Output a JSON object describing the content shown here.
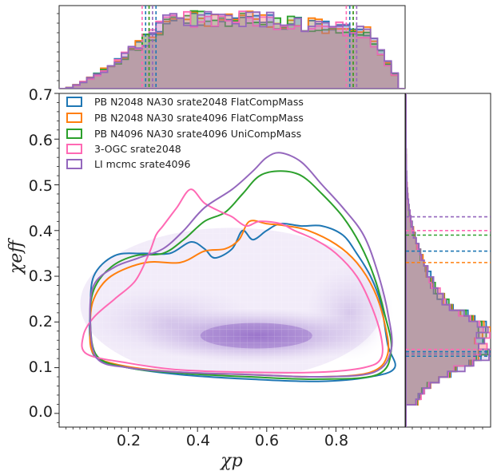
{
  "chart_data": {
    "type": "scatter",
    "subtype": "corner-plot: 2D density contours with marginal step histograms",
    "title": "",
    "xlabel": "χp",
    "ylabel": "χeff",
    "xlim": [
      0.0,
      1.0
    ],
    "ylim": [
      -0.03,
      0.7
    ],
    "xticks": [
      "0.2",
      "0.4",
      "0.6",
      "0.8"
    ],
    "yticks": [
      "0.0",
      "0.1",
      "0.2",
      "0.3",
      "0.4",
      "0.5",
      "0.6",
      "0.7"
    ],
    "xtick_values": [
      0.2,
      0.4,
      0.6,
      0.8
    ],
    "ytick_values": [
      0.0,
      0.1,
      0.2,
      0.3,
      0.4,
      0.5,
      0.6,
      0.7
    ],
    "grid": false,
    "legend_position": "top-left",
    "density_peak": [
      0.57,
      0.17
    ],
    "series": [
      {
        "name": "PB N2048 NA30 srate2048 FlatCompMass",
        "color": "#1f77b4",
        "contour": [
          [
            0.1,
            0.3
          ],
          [
            0.16,
            0.345
          ],
          [
            0.24,
            0.35
          ],
          [
            0.32,
            0.35
          ],
          [
            0.38,
            0.375
          ],
          [
            0.42,
            0.36
          ],
          [
            0.45,
            0.34
          ],
          [
            0.5,
            0.36
          ],
          [
            0.53,
            0.4
          ],
          [
            0.56,
            0.38
          ],
          [
            0.6,
            0.4
          ],
          [
            0.64,
            0.415
          ],
          [
            0.7,
            0.41
          ],
          [
            0.76,
            0.41
          ],
          [
            0.82,
            0.39
          ],
          [
            0.86,
            0.35
          ],
          [
            0.9,
            0.3
          ],
          [
            0.93,
            0.24
          ],
          [
            0.95,
            0.15
          ],
          [
            0.97,
            0.1
          ],
          [
            0.9,
            0.08
          ],
          [
            0.75,
            0.07
          ],
          [
            0.55,
            0.075
          ],
          [
            0.35,
            0.085
          ],
          [
            0.2,
            0.1
          ],
          [
            0.11,
            0.12
          ],
          [
            0.09,
            0.16
          ],
          [
            0.09,
            0.22
          ]
        ],
        "x_quantiles": [
          0.25,
          0.28,
          0.84
        ],
        "y_quantiles": [
          0.125,
          0.135,
          0.355
        ]
      },
      {
        "name": "PB N2048 NA30 srate4096 FlatCompMass",
        "color": "#ff7f0e",
        "contour": [
          [
            0.1,
            0.25
          ],
          [
            0.15,
            0.3
          ],
          [
            0.25,
            0.33
          ],
          [
            0.35,
            0.33
          ],
          [
            0.42,
            0.355
          ],
          [
            0.48,
            0.36
          ],
          [
            0.52,
            0.38
          ],
          [
            0.55,
            0.42
          ],
          [
            0.6,
            0.415
          ],
          [
            0.66,
            0.41
          ],
          [
            0.72,
            0.4
          ],
          [
            0.8,
            0.37
          ],
          [
            0.86,
            0.33
          ],
          [
            0.91,
            0.27
          ],
          [
            0.94,
            0.2
          ],
          [
            0.95,
            0.13
          ],
          [
            0.9,
            0.09
          ],
          [
            0.75,
            0.08
          ],
          [
            0.55,
            0.085
          ],
          [
            0.35,
            0.09
          ],
          [
            0.18,
            0.105
          ],
          [
            0.1,
            0.13
          ],
          [
            0.09,
            0.19
          ]
        ],
        "x_quantiles": [
          0.26,
          0.85
        ],
        "y_quantiles": [
          0.13,
          0.33
        ]
      },
      {
        "name": "PB N4096 NA30 srate4096 UniCompMass",
        "color": "#2ca02c",
        "contour": [
          [
            0.1,
            0.27
          ],
          [
            0.15,
            0.32
          ],
          [
            0.22,
            0.345
          ],
          [
            0.3,
            0.35
          ],
          [
            0.36,
            0.38
          ],
          [
            0.42,
            0.42
          ],
          [
            0.48,
            0.44
          ],
          [
            0.53,
            0.48
          ],
          [
            0.58,
            0.52
          ],
          [
            0.64,
            0.53
          ],
          [
            0.7,
            0.52
          ],
          [
            0.76,
            0.48
          ],
          [
            0.82,
            0.43
          ],
          [
            0.87,
            0.37
          ],
          [
            0.91,
            0.3
          ],
          [
            0.94,
            0.22
          ],
          [
            0.96,
            0.14
          ],
          [
            0.92,
            0.085
          ],
          [
            0.75,
            0.075
          ],
          [
            0.55,
            0.08
          ],
          [
            0.35,
            0.088
          ],
          [
            0.2,
            0.1
          ],
          [
            0.11,
            0.125
          ],
          [
            0.09,
            0.2
          ]
        ],
        "x_quantiles": [
          0.26,
          0.85
        ],
        "y_quantiles": [
          0.13,
          0.39
        ]
      },
      {
        "name": "3-OGC srate2048",
        "color": "#ff69b4",
        "contour": [
          [
            0.3,
            0.41
          ],
          [
            0.34,
            0.45
          ],
          [
            0.38,
            0.49
          ],
          [
            0.42,
            0.46
          ],
          [
            0.47,
            0.44
          ],
          [
            0.5,
            0.43
          ],
          [
            0.54,
            0.41
          ],
          [
            0.58,
            0.42
          ],
          [
            0.64,
            0.415
          ],
          [
            0.68,
            0.4
          ],
          [
            0.74,
            0.38
          ],
          [
            0.8,
            0.35
          ],
          [
            0.86,
            0.3
          ],
          [
            0.9,
            0.24
          ],
          [
            0.93,
            0.17
          ],
          [
            0.93,
            0.12
          ],
          [
            0.88,
            0.1
          ],
          [
            0.75,
            0.09
          ],
          [
            0.55,
            0.09
          ],
          [
            0.35,
            0.095
          ],
          [
            0.2,
            0.11
          ],
          [
            0.08,
            0.13
          ],
          [
            0.07,
            0.17
          ],
          [
            0.1,
            0.21
          ],
          [
            0.16,
            0.25
          ],
          [
            0.22,
            0.29
          ],
          [
            0.26,
            0.35
          ],
          [
            0.28,
            0.39
          ]
        ],
        "x_quantiles": [
          0.24,
          0.83
        ],
        "y_quantiles": [
          0.14,
          0.4
        ]
      },
      {
        "name": "LI mcmc srate4096",
        "color": "#9467bd",
        "contour": [
          [
            0.1,
            0.28
          ],
          [
            0.16,
            0.32
          ],
          [
            0.23,
            0.34
          ],
          [
            0.3,
            0.36
          ],
          [
            0.36,
            0.4
          ],
          [
            0.42,
            0.45
          ],
          [
            0.5,
            0.49
          ],
          [
            0.56,
            0.53
          ],
          [
            0.6,
            0.56
          ],
          [
            0.64,
            0.57
          ],
          [
            0.7,
            0.55
          ],
          [
            0.76,
            0.5
          ],
          [
            0.82,
            0.45
          ],
          [
            0.88,
            0.39
          ],
          [
            0.92,
            0.31
          ],
          [
            0.95,
            0.22
          ],
          [
            0.96,
            0.14
          ],
          [
            0.91,
            0.09
          ],
          [
            0.75,
            0.08
          ],
          [
            0.55,
            0.085
          ],
          [
            0.35,
            0.09
          ],
          [
            0.2,
            0.1
          ],
          [
            0.11,
            0.12
          ],
          [
            0.09,
            0.2
          ]
        ],
        "x_quantiles": [
          0.27,
          0.86
        ],
        "y_quantiles": [
          0.13,
          0.43
        ]
      }
    ]
  }
}
